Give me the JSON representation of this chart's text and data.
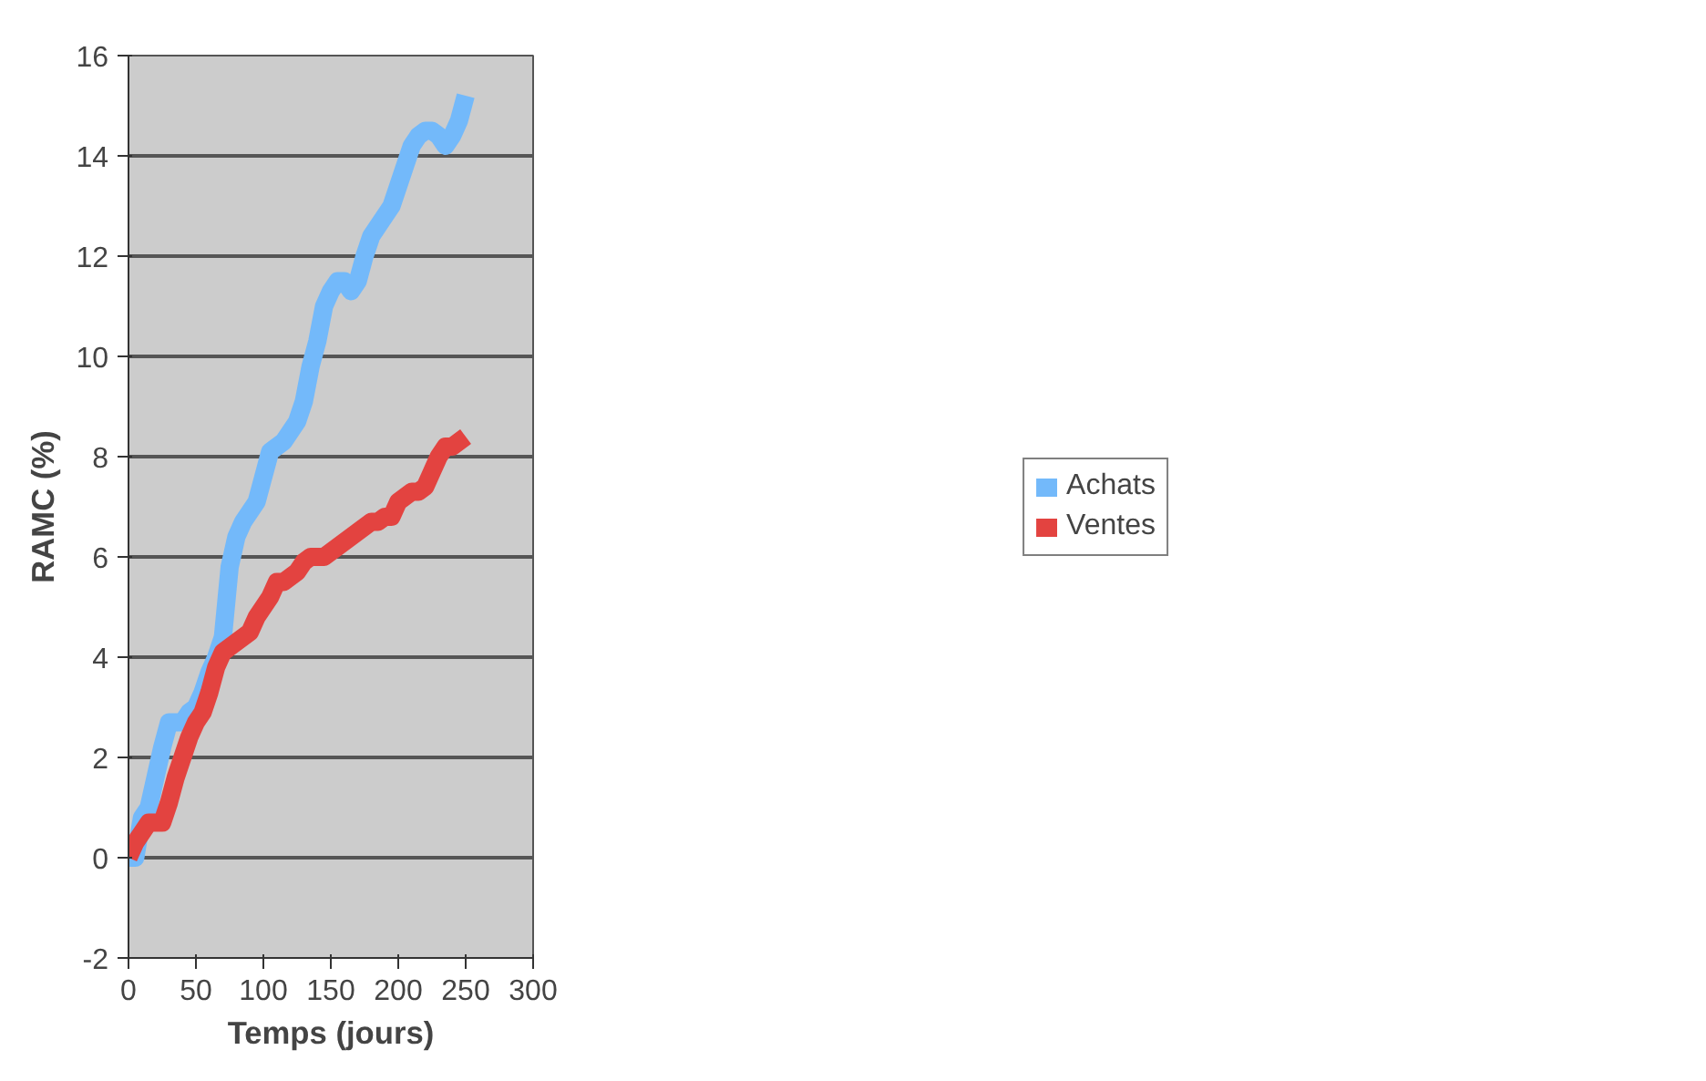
{
  "chart_data": {
    "type": "line",
    "xlabel": "Temps (jours)",
    "ylabel": "RAMC (%)",
    "x": [
      0,
      5,
      10,
      15,
      20,
      25,
      30,
      35,
      40,
      45,
      50,
      55,
      60,
      65,
      70,
      75,
      80,
      85,
      90,
      95,
      100,
      105,
      110,
      115,
      120,
      125,
      130,
      135,
      140,
      145,
      150,
      155,
      160,
      165,
      170,
      175,
      180,
      185,
      190,
      195,
      200,
      205,
      210,
      215,
      220,
      225,
      230,
      235,
      240,
      245,
      250
    ],
    "series": [
      {
        "name": "Achats",
        "color": "#73b9fa",
        "values": [
          0,
          0,
          0.8,
          1.0,
          1.6,
          2.2,
          2.7,
          2.7,
          2.7,
          2.9,
          3.0,
          3.3,
          3.7,
          4.0,
          4.4,
          5.8,
          6.4,
          6.7,
          6.9,
          7.1,
          7.6,
          8.1,
          8.2,
          8.3,
          8.5,
          8.7,
          9.1,
          9.8,
          10.3,
          11.0,
          11.3,
          11.5,
          11.5,
          11.3,
          11.5,
          12.0,
          12.4,
          12.6,
          12.8,
          13.0,
          13.4,
          13.8,
          14.2,
          14.4,
          14.5,
          14.5,
          14.4,
          14.2,
          14.4,
          14.7,
          15.2
        ]
      },
      {
        "name": "Ventes",
        "color": "#e34340",
        "values": [
          0,
          0.3,
          0.5,
          0.7,
          0.7,
          0.7,
          1.1,
          1.6,
          2.0,
          2.4,
          2.7,
          2.9,
          3.3,
          3.8,
          4.1,
          4.2,
          4.3,
          4.4,
          4.5,
          4.8,
          5.0,
          5.2,
          5.5,
          5.5,
          5.6,
          5.7,
          5.9,
          6.0,
          6.0,
          6.0,
          6.1,
          6.2,
          6.3,
          6.4,
          6.5,
          6.6,
          6.7,
          6.7,
          6.8,
          6.8,
          7.1,
          7.2,
          7.3,
          7.3,
          7.4,
          7.7,
          8.0,
          8.2,
          8.2,
          8.3,
          8.4
        ]
      }
    ],
    "xlim": [
      0,
      300
    ],
    "xticks": [
      0,
      50,
      100,
      150,
      200,
      250,
      300
    ],
    "ylim": [
      -2,
      16
    ],
    "yticks": [
      -2,
      0,
      2,
      4,
      6,
      8,
      10,
      12,
      14,
      16
    ],
    "grid": "y",
    "legend": "right",
    "line_style": "solid"
  }
}
